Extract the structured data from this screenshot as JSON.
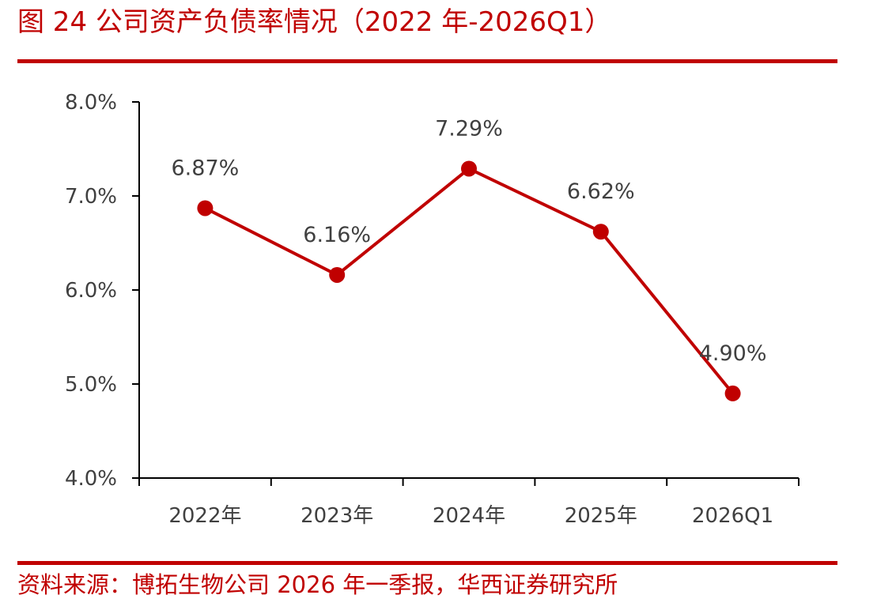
{
  "title": "图 24 公司资产负债率情况（2022 年-2026Q1）",
  "source": "资料来源：博拓生物公司 2026 年一季报，华西证券研究所",
  "colors": {
    "accent": "#c00000",
    "line": "#c00000",
    "text": "#404040"
  },
  "chart_data": {
    "type": "line",
    "categories": [
      "2022年",
      "2023年",
      "2024年",
      "2025年",
      "2026Q1"
    ],
    "series": [
      {
        "values": [
          6.87,
          6.16,
          7.29,
          6.62,
          4.9
        ],
        "labels": [
          "6.87%",
          "6.16%",
          "7.29%",
          "6.62%",
          "4.90%"
        ]
      }
    ],
    "ylim": [
      4.0,
      8.0
    ],
    "yticks": [
      4.0,
      5.0,
      6.0,
      7.0,
      8.0
    ],
    "ytick_labels": [
      "4.0%",
      "5.0%",
      "6.0%",
      "7.0%",
      "8.0%"
    ],
    "grid": false,
    "legend": "none"
  }
}
